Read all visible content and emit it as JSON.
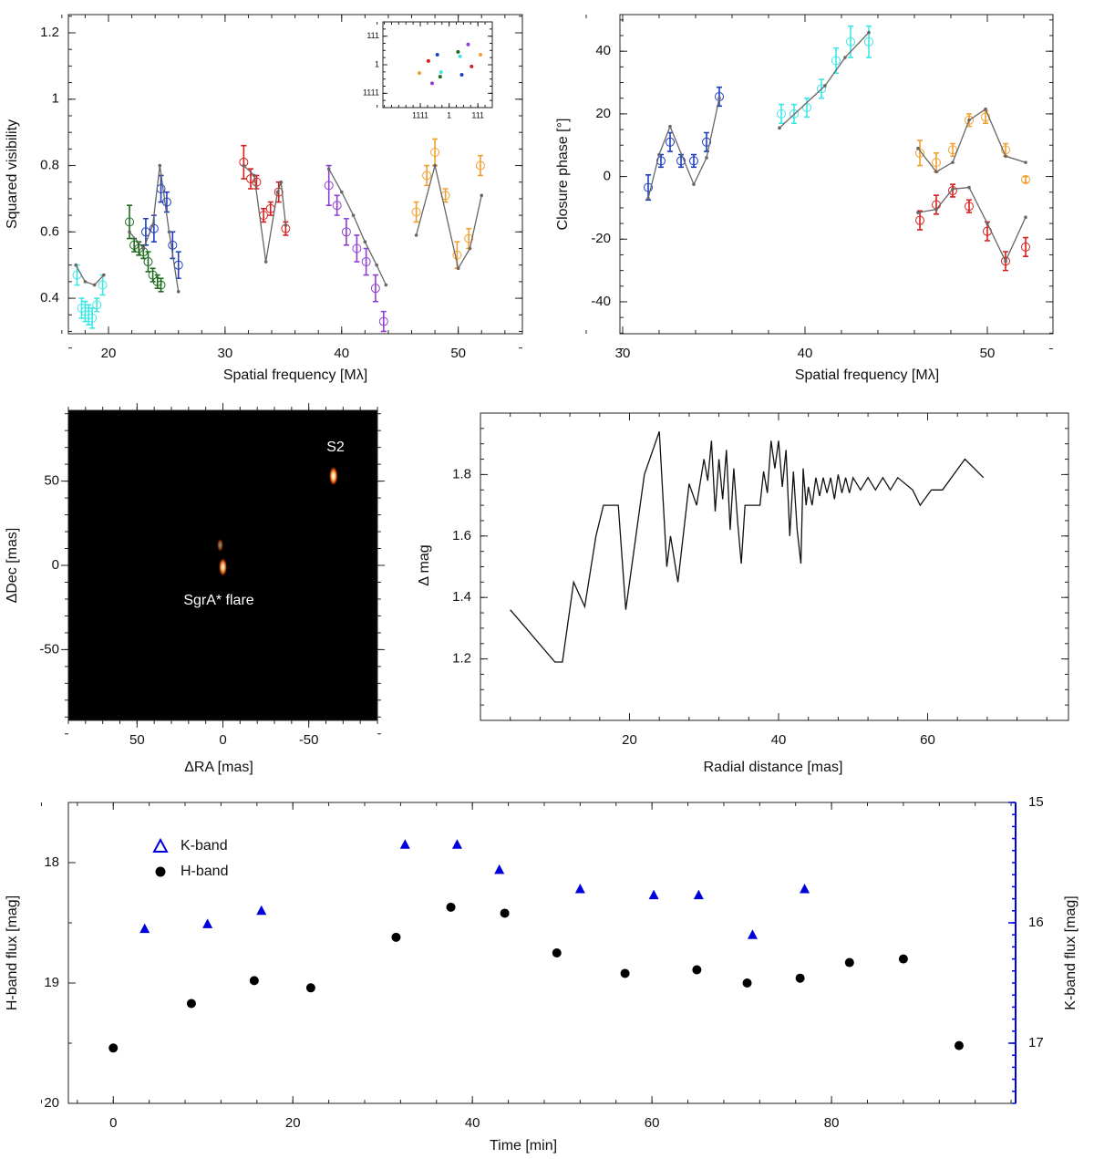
{
  "chart_data": [
    {
      "type": "scatter",
      "xlabel": "Spatial frequency [Mλ]",
      "ylabel": "Squared visibility",
      "xlim": [
        16.56,
        55.5
      ],
      "xticks": [
        20,
        30,
        40,
        50
      ],
      "ylim": [
        0.293,
        1.255
      ],
      "yticks": [
        0.4,
        0.6,
        0.8,
        1.0,
        1.2
      ],
      "series": [
        {
          "color": "#3ee6e6",
          "x": [
            17.3,
            17.7,
            18.0,
            18.3,
            18.6,
            19.0,
            19.5
          ],
          "values": [
            0.47,
            0.37,
            0.36,
            0.35,
            0.34,
            0.38,
            0.44
          ],
          "errors": [
            0.03,
            0.03,
            0.03,
            0.03,
            0.03,
            0.02,
            0.03
          ]
        },
        {
          "color": "#1e6b1e",
          "x": [
            21.8,
            22.2,
            22.6,
            23.0,
            23.4,
            23.8,
            24.2,
            24.5
          ],
          "values": [
            0.63,
            0.56,
            0.55,
            0.54,
            0.51,
            0.47,
            0.45,
            0.44
          ],
          "errors": [
            0.05,
            0.02,
            0.02,
            0.02,
            0.03,
            0.02,
            0.02,
            0.02
          ]
        },
        {
          "color": "#1f3fbf",
          "x": [
            23.2,
            23.9,
            24.5,
            25.0,
            25.5,
            26.0
          ],
          "values": [
            0.6,
            0.61,
            0.73,
            0.69,
            0.56,
            0.5
          ],
          "errors": [
            0.04,
            0.04,
            0.04,
            0.03,
            0.04,
            0.04
          ]
        },
        {
          "color": "#d62020",
          "x": [
            31.6,
            32.2,
            32.7,
            33.3,
            33.9,
            34.6,
            35.2
          ],
          "values": [
            0.81,
            0.76,
            0.75,
            0.65,
            0.67,
            0.72,
            0.61
          ],
          "errors": [
            0.05,
            0.03,
            0.02,
            0.02,
            0.02,
            0.03,
            0.02
          ]
        },
        {
          "color": "#9040d0",
          "x": [
            38.9,
            39.6,
            40.4,
            41.3,
            42.1,
            42.9,
            43.6
          ],
          "values": [
            0.74,
            0.68,
            0.6,
            0.55,
            0.51,
            0.43,
            0.33
          ],
          "errors": [
            0.06,
            0.03,
            0.04,
            0.04,
            0.04,
            0.04,
            0.03
          ]
        },
        {
          "color": "#f0a030",
          "x": [
            46.4,
            47.3,
            48.0,
            48.9,
            49.9,
            50.9,
            51.9
          ],
          "values": [
            0.66,
            0.77,
            0.84,
            0.71,
            0.53,
            0.58,
            0.8
          ],
          "errors": [
            0.03,
            0.03,
            0.04,
            0.02,
            0.04,
            0.03,
            0.03
          ]
        },
        {
          "color": "#666666",
          "style": "line",
          "x": [
            17.2,
            18.0,
            18.8,
            19.6,
            null,
            21.8,
            23.0,
            23.8,
            24.4,
            25.2,
            26.0,
            null,
            31.6,
            32.5,
            33.5,
            34.5,
            34.8,
            35.2,
            null,
            38.9,
            40.0,
            41.0,
            42.0,
            43.0,
            43.8,
            null,
            46.4,
            48.0,
            50.0,
            51.0,
            52.0
          ],
          "values": [
            0.5,
            0.45,
            0.44,
            0.47,
            null,
            0.6,
            0.55,
            0.62,
            0.8,
            0.6,
            0.42,
            null,
            0.8,
            0.77,
            0.51,
            0.72,
            0.75,
            0.62,
            null,
            0.79,
            0.72,
            0.65,
            0.57,
            0.5,
            0.44,
            null,
            0.59,
            0.8,
            0.49,
            0.55,
            0.71
          ]
        }
      ]
    },
    {
      "type": "scatter",
      "xlim": [
        -2.3,
        1.5
      ],
      "xticks": [
        {
          "value": -1,
          "label": "1111"
        },
        {
          "value": 0,
          "label": "1"
        },
        {
          "value": 1,
          "label": "111"
        }
      ],
      "ylim": [
        -1.5,
        1.5
      ],
      "yticks": [
        {
          "value": -1,
          "label": "1111"
        },
        {
          "value": 0,
          "label": "1"
        },
        {
          "value": 1,
          "label": "111"
        }
      ],
      "series": [
        {
          "color": "#1f3fbf",
          "marker": "dot",
          "x": [
            -0.41,
            0.44
          ],
          "values": [
            0.35,
            -0.35
          ]
        },
        {
          "color": "#d62020",
          "marker": "dot",
          "x": [
            -0.72,
            0.78
          ],
          "values": [
            0.13,
            -0.06
          ]
        },
        {
          "color": "#f0a030",
          "marker": "dot",
          "x": [
            -1.03,
            1.09
          ],
          "values": [
            -0.29,
            0.35
          ]
        },
        {
          "color": "#9040d0",
          "marker": "dot",
          "x": [
            -0.59,
            0.66
          ],
          "values": [
            -0.65,
            0.71
          ]
        },
        {
          "color": "#1e6b1e",
          "marker": "dot",
          "x": [
            -0.31,
            0.31
          ],
          "values": [
            -0.42,
            0.45
          ]
        },
        {
          "color": "#3ee6e6",
          "marker": "dot",
          "x": [
            -0.28,
            0.38
          ],
          "values": [
            -0.26,
            0.29
          ]
        }
      ]
    },
    {
      "type": "scatter",
      "xlabel": "Spatial frequency [Mλ]",
      "ylabel": "Closure phase [°]",
      "xlim": [
        29.85,
        53.6
      ],
      "xticks": [
        30,
        40,
        50
      ],
      "ylim": [
        -50.2,
        51.7
      ],
      "yticks": [
        -40,
        -20,
        0,
        20,
        40
      ],
      "series": [
        {
          "color": "#1f3fbf",
          "x": [
            31.4,
            32.1,
            32.6,
            33.2,
            33.9,
            34.6,
            35.3
          ],
          "values": [
            -3.5,
            5,
            11,
            5,
            5,
            11,
            25.5
          ],
          "errors": [
            4,
            2,
            3,
            2,
            2,
            3,
            3
          ]
        },
        {
          "color": "#3ee6e6",
          "x": [
            38.7,
            39.4,
            40.1,
            40.9,
            41.7,
            42.5,
            43.5
          ],
          "values": [
            20,
            20,
            22,
            28,
            37,
            43,
            43
          ],
          "errors": [
            3,
            3,
            3,
            3,
            4,
            5,
            5
          ]
        },
        {
          "color": "#f0a030",
          "x": [
            46.3,
            47.2,
            48.1,
            49.0,
            49.9,
            51.0,
            52.1
          ],
          "values": [
            7.5,
            4.5,
            8.5,
            18,
            19,
            8.5,
            -1
          ],
          "errors": [
            4,
            3,
            2,
            2,
            2,
            2,
            1
          ]
        },
        {
          "color": "#d62020",
          "x": [
            46.3,
            47.2,
            48.1,
            49.0,
            50.0,
            51.0,
            52.1
          ],
          "values": [
            -14,
            -9,
            -4.5,
            -9.5,
            -17.5,
            -27,
            -22.5
          ],
          "errors": [
            3,
            3,
            2,
            2,
            3,
            3,
            3
          ]
        },
        {
          "color": "#666666",
          "style": "line",
          "x": [
            31.4,
            32.0,
            32.6,
            33.9,
            34.6,
            35.3,
            null,
            38.6,
            41.1,
            42.2,
            43.5,
            null,
            46.2,
            47.2,
            48.1,
            49.0,
            49.9,
            51.0,
            52.1,
            null,
            46.2,
            47.2,
            48.1,
            49.0,
            50.0,
            51.0,
            52.1
          ],
          "values": [
            -7,
            7,
            16,
            -2.5,
            6,
            25,
            null,
            15.5,
            29,
            38,
            46,
            null,
            9,
            1.5,
            4.5,
            18,
            21.5,
            6.5,
            4.5,
            null,
            -11.5,
            -10.5,
            -4,
            -3.5,
            -15,
            -27,
            -13
          ]
        }
      ]
    },
    {
      "type": "image",
      "xlabel": "ΔRA [mas]",
      "ylabel": "ΔDec [mas]",
      "xlim": [
        90,
        -90
      ],
      "xticks": [
        50,
        0,
        -50
      ],
      "ylim": [
        -92,
        92
      ],
      "yticks": [
        -50,
        0,
        50
      ],
      "annotations": [
        "S2",
        "SgrA* flare"
      ],
      "sources": {
        "x": [
          -64.4,
          0,
          1.6
        ],
        "y": [
          53,
          -1,
          12
        ],
        "intensity": [
          1,
          0.9,
          0.3
        ]
      }
    },
    {
      "type": "line",
      "xlabel": "Radial distance [mas]",
      "ylabel": "Δ mag",
      "color": "#111111",
      "xlim": [
        0,
        78.9
      ],
      "xticks": [
        20,
        40,
        60
      ],
      "ylim": [
        1.0,
        2.0
      ],
      "yticks": [
        1.2,
        1.4,
        1.6,
        1.8
      ],
      "x": [
        4,
        10,
        11,
        12.5,
        14,
        15.5,
        16.5,
        18.5,
        19.5,
        22,
        24,
        25,
        25.5,
        26.5,
        28,
        29,
        30,
        30.5,
        31,
        31.5,
        32,
        32.5,
        33,
        33.5,
        34,
        34.5,
        35,
        35.5,
        37.5,
        38,
        38.5,
        39,
        39.5,
        40,
        40.5,
        41,
        41.5,
        42,
        42.5,
        43,
        43.3,
        43.7,
        44,
        44.5,
        45,
        45.5,
        46,
        46.5,
        47,
        47.5,
        48,
        48.5,
        49,
        49.5,
        50,
        51,
        52,
        53,
        54,
        55,
        56,
        58,
        59,
        60.5,
        62,
        65,
        67.5
      ],
      "values": [
        1.36,
        1.19,
        1.19,
        1.45,
        1.37,
        1.6,
        1.7,
        1.7,
        1.36,
        1.8,
        1.94,
        1.5,
        1.6,
        1.45,
        1.77,
        1.7,
        1.85,
        1.78,
        1.91,
        1.68,
        1.85,
        1.72,
        1.88,
        1.62,
        1.82,
        1.65,
        1.51,
        1.7,
        1.7,
        1.81,
        1.74,
        1.91,
        1.82,
        1.91,
        1.76,
        1.88,
        1.6,
        1.81,
        1.62,
        1.51,
        1.82,
        1.7,
        1.76,
        1.7,
        1.79,
        1.73,
        1.79,
        1.74,
        1.79,
        1.72,
        1.8,
        1.74,
        1.79,
        1.74,
        1.79,
        1.75,
        1.79,
        1.75,
        1.79,
        1.75,
        1.79,
        1.75,
        1.7,
        1.75,
        1.75,
        1.85,
        1.79
      ]
    },
    {
      "type": "scatter",
      "xlabel": "Time [min]",
      "ylabel": "H-band flux [mag]",
      "y2label": "K-band flux [mag]",
      "legend": "upper left",
      "xlim": [
        -5,
        100.5
      ],
      "xticks": [
        0,
        20,
        40,
        60,
        80
      ],
      "ylim": [
        20,
        17.5
      ],
      "yticks": [
        18,
        19,
        20
      ],
      "y2lim": [
        17.5,
        15
      ],
      "y2ticks": [
        15,
        16,
        17
      ],
      "y2color": "#0000dd",
      "series": [
        {
          "name": "K-band",
          "color": "#0000dd",
          "marker": "triangle",
          "axis": "y2",
          "x": [
            3.5,
            10.5,
            16.5,
            32.5,
            38.3,
            43,
            52,
            60.2,
            65.2,
            71.2,
            77
          ],
          "values": [
            16.05,
            16.01,
            15.9,
            15.35,
            15.35,
            15.56,
            15.72,
            15.77,
            15.77,
            16.1,
            15.72
          ]
        },
        {
          "name": "H-band",
          "color": "#000000",
          "marker": "dot",
          "x": [
            0,
            8.7,
            15.7,
            22,
            31.5,
            37.6,
            43.6,
            49.4,
            57,
            65,
            70.6,
            76.5,
            82,
            88,
            94.2
          ],
          "values": [
            19.54,
            19.17,
            18.98,
            19.04,
            18.62,
            18.37,
            18.42,
            18.75,
            18.92,
            18.89,
            19.0,
            18.96,
            18.83,
            18.8,
            19.52
          ]
        }
      ]
    }
  ]
}
